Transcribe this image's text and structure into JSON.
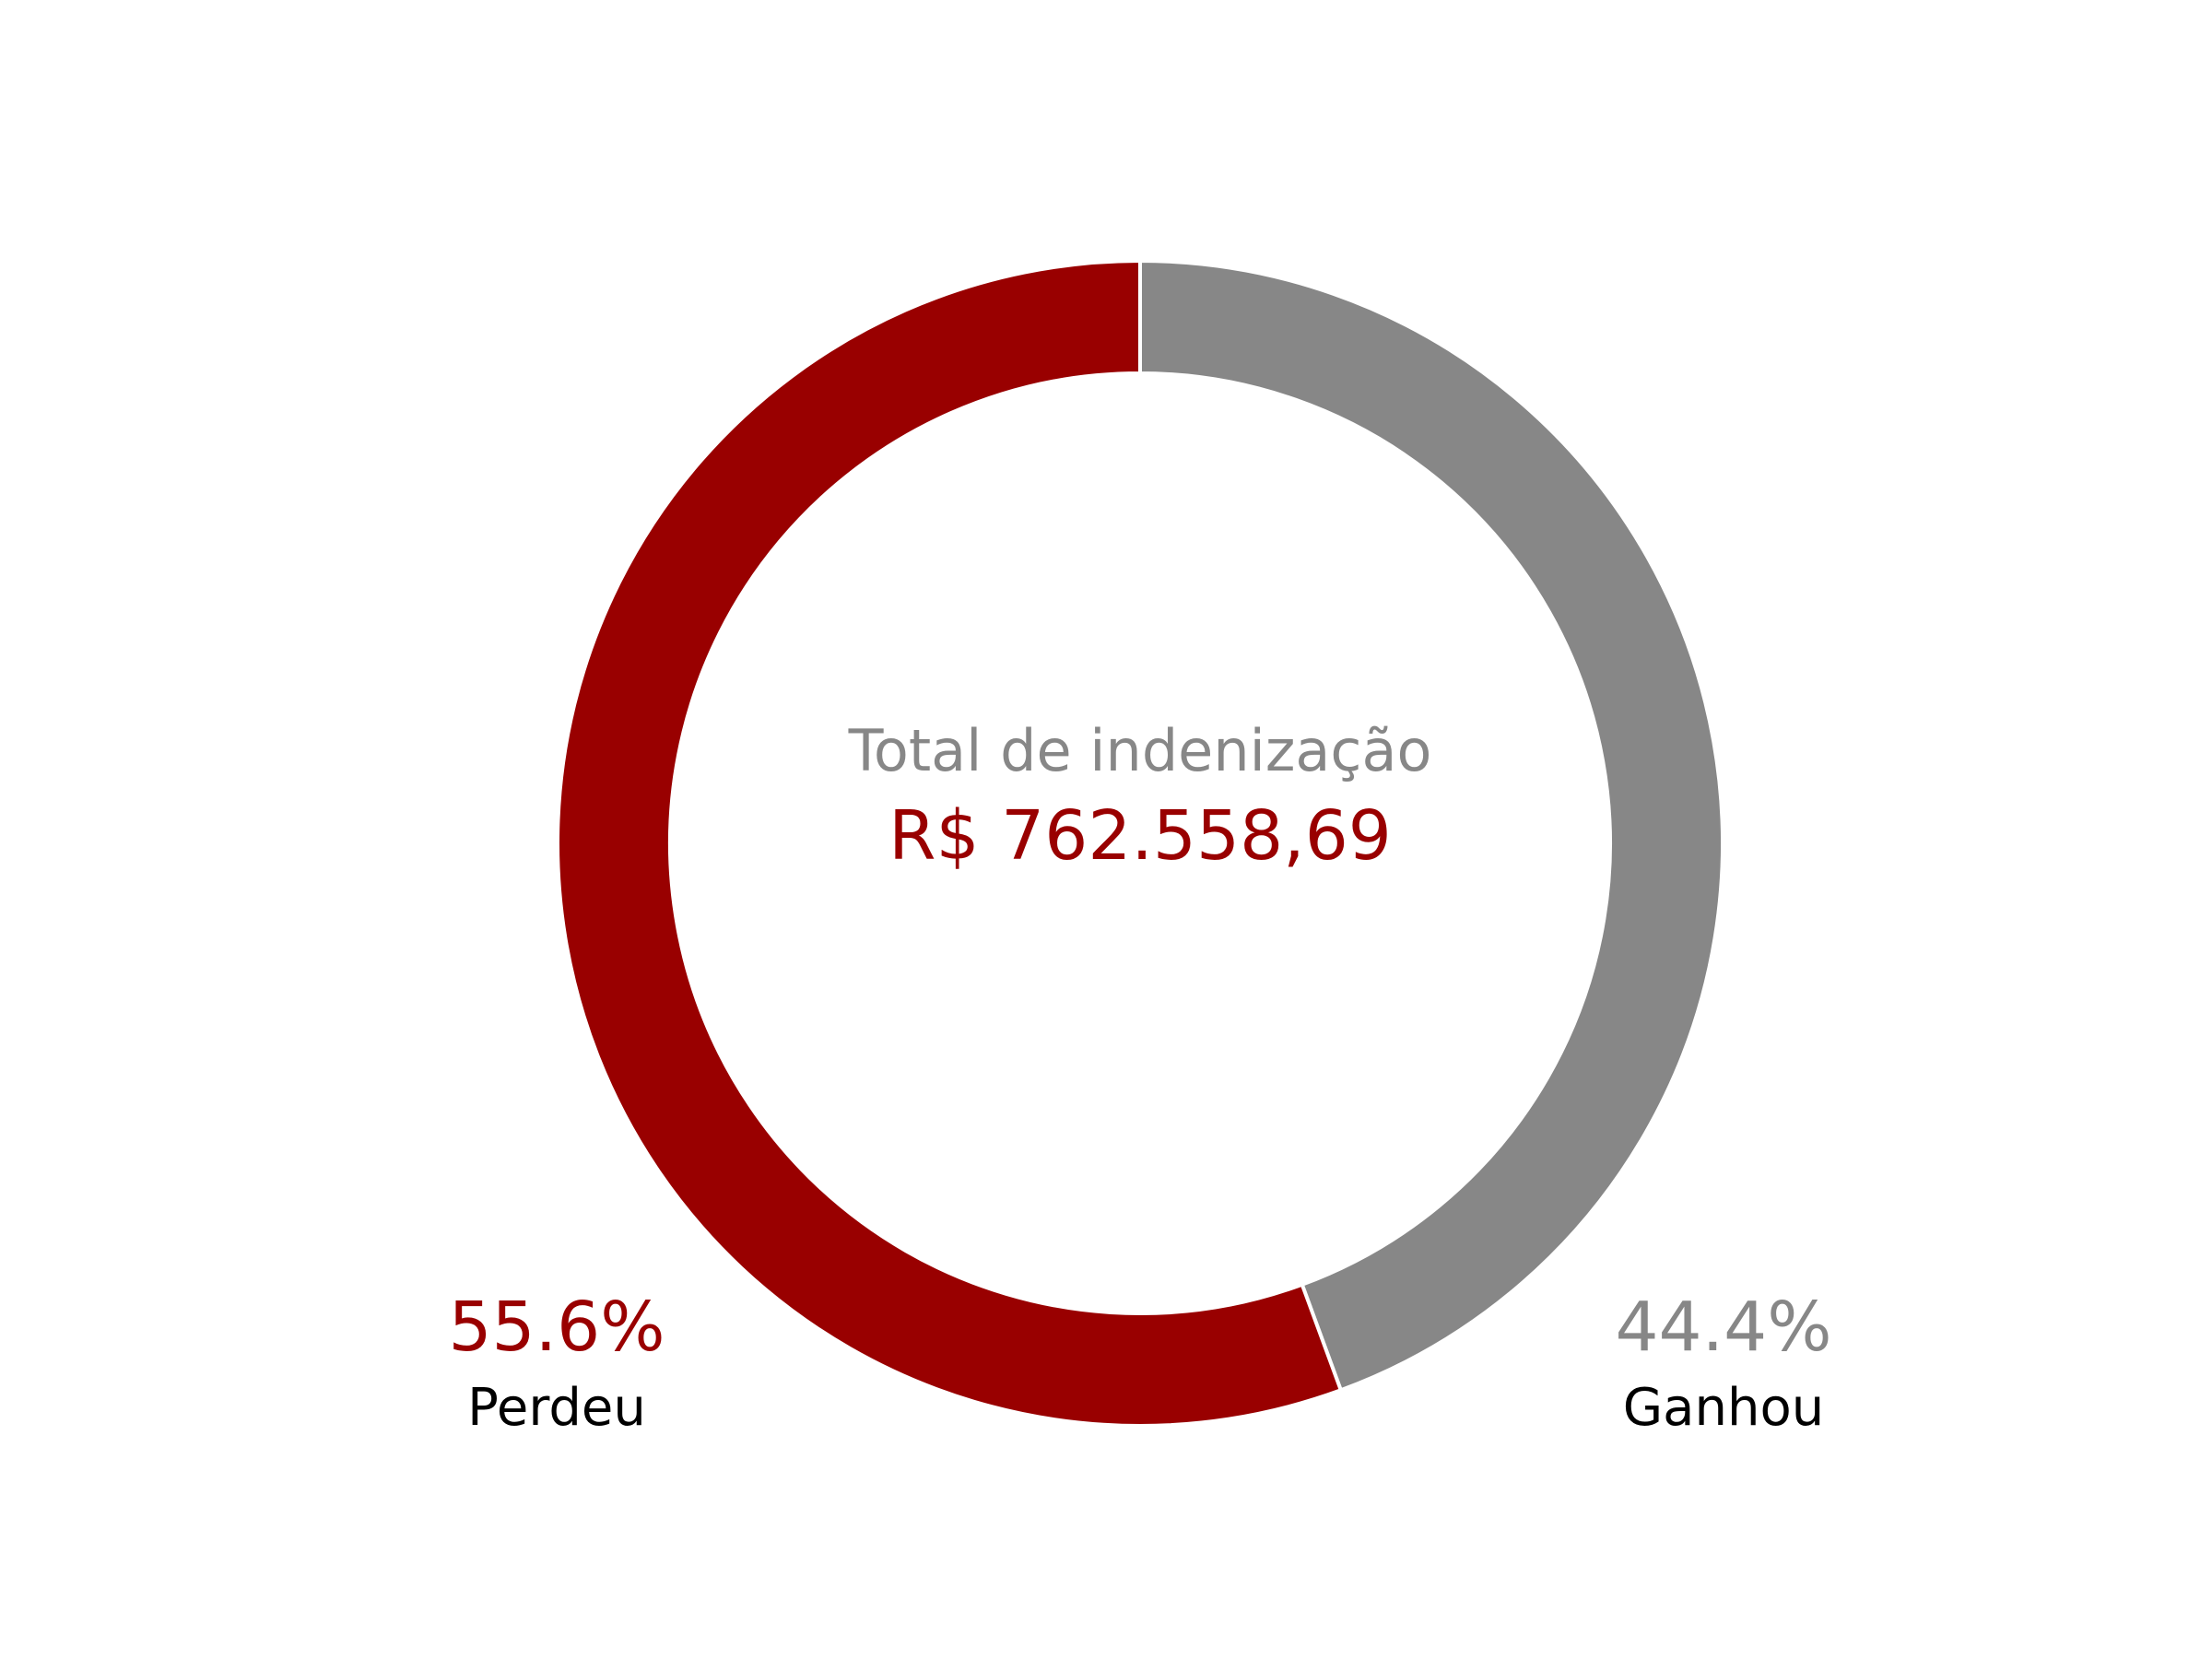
{
  "chart_data": {
    "type": "pie",
    "style": "donut",
    "center_label": "Total de indenização",
    "center_value": "R$ 762.558,69",
    "series": [
      {
        "name": "Ganhou",
        "value": 44.4,
        "value_label": "44.4%",
        "color": "#878787"
      },
      {
        "name": "Perdeu",
        "value": 55.6,
        "value_label": "55.6%",
        "color": "#990000"
      }
    ],
    "colors": {
      "center_label": "#878787",
      "center_value": "#990000",
      "category_label": "#000000",
      "slice_edge": "#ffffff"
    }
  }
}
